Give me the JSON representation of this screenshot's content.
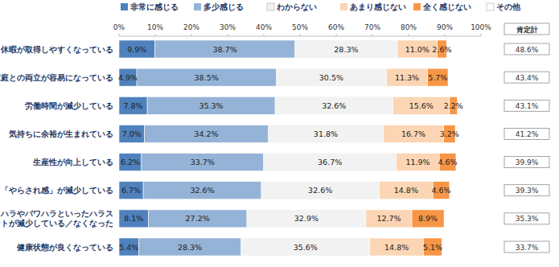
{
  "chart_data": {
    "type": "bar",
    "orientation": "horizontal",
    "stacked": true,
    "data_labels": true,
    "grid": false,
    "legend": "top",
    "categories": [
      "休暇が取得しやすくなっている",
      "家庭との両立が容易になっている",
      "労働時間が減少している",
      "気持ちに余裕が生まれている",
      "生産性が向上している",
      "「やらされ感」が減少している",
      "セクハラやパワハラといったハラス\nメントが減少している／なくなった",
      "健康状態が良くなっている"
    ],
    "xlim": [
      0,
      100
    ],
    "xticks": [
      {
        "value": 0,
        "label": "0%"
      },
      {
        "value": 10,
        "label": "10%"
      },
      {
        "value": 20,
        "label": "20%"
      },
      {
        "value": 30,
        "label": "30%"
      },
      {
        "value": 40,
        "label": "40%"
      },
      {
        "value": 50,
        "label": "50%"
      },
      {
        "value": 60,
        "label": "60%"
      },
      {
        "value": 70,
        "label": "70%"
      },
      {
        "value": 80,
        "label": "80%"
      },
      {
        "value": 90,
        "label": "90%"
      },
      {
        "value": 100,
        "label": "100%"
      }
    ],
    "series": [
      {
        "name": "非常に感じる",
        "color": "#4f81bd",
        "values": [
          9.9,
          4.9,
          7.8,
          7.0,
          6.2,
          6.7,
          8.1,
          5.4
        ],
        "value_labels": [
          "9.9%",
          "4.9%",
          "7.8%",
          "7.0%",
          "6.2%",
          "6.7%",
          "8.1%",
          "5.4%"
        ]
      },
      {
        "name": "多少感じる",
        "color": "#95b3d7",
        "values": [
          38.7,
          38.5,
          35.3,
          34.2,
          33.7,
          32.6,
          27.2,
          28.3
        ],
        "value_labels": [
          "38.7%",
          "38.5%",
          "35.3%",
          "34.2%",
          "33.7%",
          "32.6%",
          "27.2%",
          "28.3%"
        ]
      },
      {
        "name": "わからない",
        "color": "#f2f2f2",
        "values": [
          28.3,
          30.5,
          32.6,
          31.8,
          36.7,
          32.6,
          32.9,
          35.6
        ],
        "value_labels": [
          "28.3%",
          "30.5%",
          "32.6%",
          "31.8%",
          "36.7%",
          "32.6%",
          "32.9%",
          "35.6%"
        ]
      },
      {
        "name": "あまり感じない",
        "color": "#fcd5b4",
        "values": [
          11.0,
          11.3,
          15.6,
          16.7,
          11.9,
          14.8,
          12.7,
          14.8
        ],
        "value_labels": [
          "11.0%",
          "11.3%",
          "15.6%",
          "16.7%",
          "11.9%",
          "14.8%",
          "12.7%",
          "14.8%"
        ]
      },
      {
        "name": "全く感じない",
        "color": "#f79646",
        "values": [
          2.6,
          5.7,
          2.2,
          3.2,
          4.6,
          4.6,
          8.9,
          5.1
        ],
        "value_labels": [
          "2.6%",
          "5.7%",
          "2.2%",
          "3.2%",
          "4.6%",
          "4.6%",
          "8.9%",
          "5.1%"
        ]
      },
      {
        "name": "その他",
        "color": "#ffffff",
        "data_labels": false,
        "values": [
          9.5,
          9.1,
          6.5,
          7.1,
          6.9,
          8.7,
          10.2,
          10.8
        ]
      }
    ],
    "positive_total": {
      "label": "肯定計",
      "values": [
        48.6,
        43.4,
        43.1,
        41.2,
        39.9,
        39.3,
        35.3,
        33.7
      ],
      "value_labels": [
        "48.6%",
        "43.4%",
        "43.1%",
        "41.2%",
        "39.9%",
        "39.3%",
        "35.3%",
        "33.7%"
      ]
    }
  }
}
